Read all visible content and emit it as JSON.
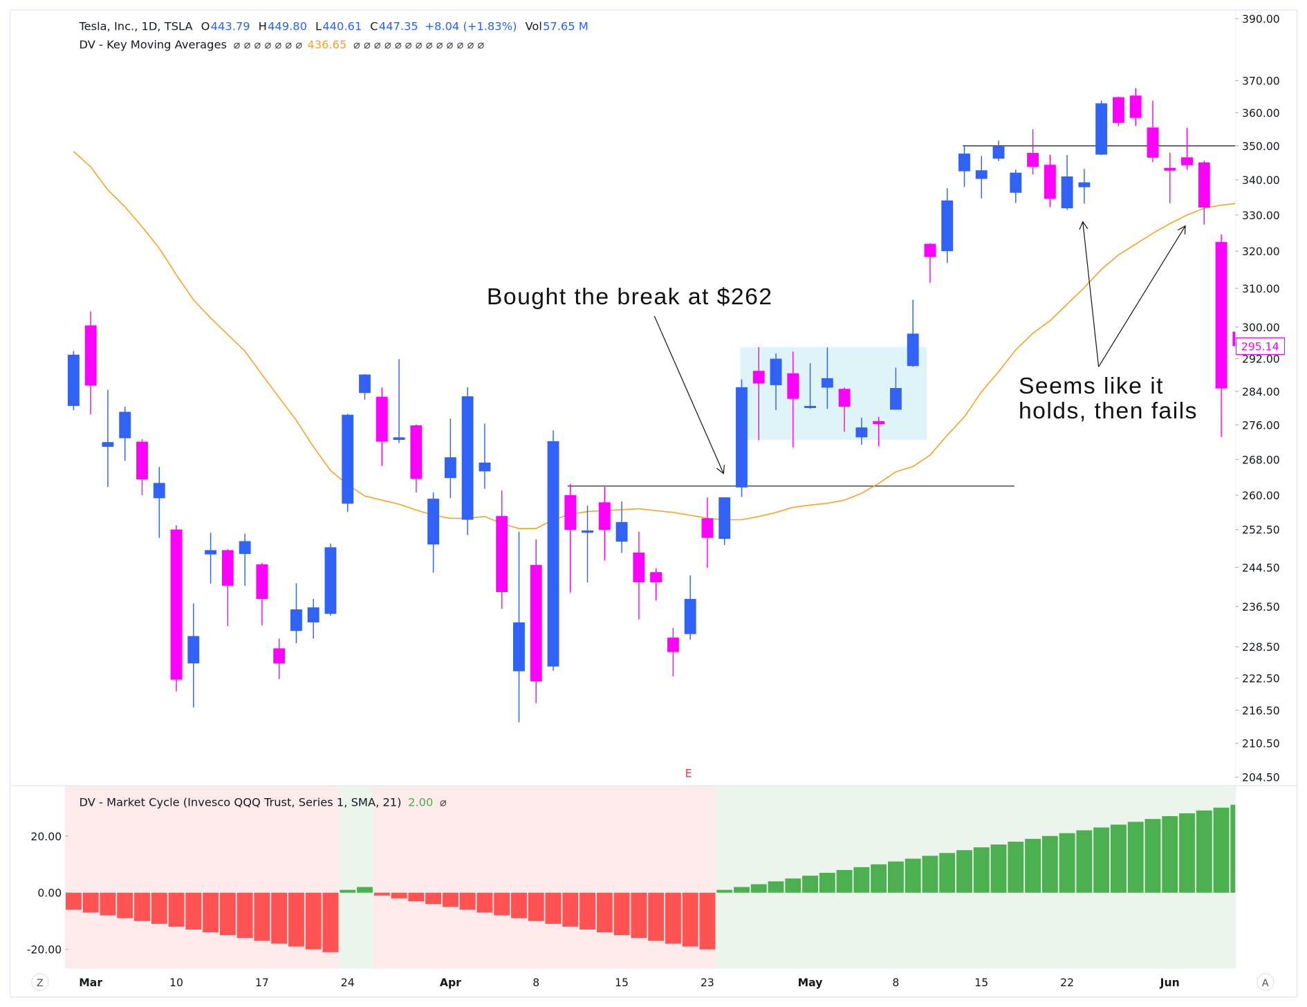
{
  "chart_data": [
    {
      "type": "candlestick",
      "header": {
        "title": "Tesla, Inc., 1D, TSLA",
        "readouts": [
          {
            "label": "O",
            "value": "443.79"
          },
          {
            "label": "H",
            "value": "449.80"
          },
          {
            "label": "L",
            "value": "440.61"
          },
          {
            "label": "C",
            "value": "447.35"
          }
        ],
        "change": "+8.04 (+1.83%)",
        "volume_label": "Vol",
        "volume": "57.65 M"
      },
      "categories": [
        null,
        "Mar",
        null,
        null,
        null,
        null,
        "10",
        null,
        null,
        null,
        null,
        "17",
        null,
        null,
        null,
        null,
        "24",
        null,
        null,
        null,
        null,
        null,
        "Apr",
        null,
        null,
        null,
        null,
        "8",
        null,
        null,
        null,
        null,
        "15",
        null,
        null,
        null,
        null,
        "23",
        null,
        null,
        null,
        null,
        null,
        "May",
        null,
        null,
        null,
        null,
        "8",
        null,
        null,
        null,
        null,
        "15",
        null,
        null,
        null,
        null,
        "22",
        null,
        null,
        null,
        null,
        null,
        "Jun",
        null,
        null,
        null,
        null
      ],
      "open": [
        280.5,
        300.4,
        270.9,
        272.9,
        272.1,
        259.3,
        252.5,
        225.3,
        247.2,
        248.1,
        247.3,
        245.1,
        228.2,
        231.6,
        233.3,
        235.0,
        258.1,
        283.6,
        282.7,
        272.5,
        275.9,
        249.3,
        263.8,
        254.6,
        265.3,
        255.4,
        223.8,
        245.0,
        224.7,
        260.0,
        251.8,
        258.4,
        249.9,
        247.6,
        243.5,
        230.3,
        231.0,
        254.9,
        250.5,
        261.7,
        289.0,
        285.5,
        288.4,
        280.0,
        284.9,
        284.6,
        273.1,
        276.9,
        279.6,
        290.2,
        322.0,
        320.0,
        342.5,
        340.3,
        346.2,
        336.3,
        347.9,
        344.4,
        331.9,
        337.9,
        347.4,
        364.8,
        365.3,
        355.5,
        343.5,
        346.6,
        345.1,
        322.5,
        298.8
      ],
      "high": [
        293.9,
        304.0,
        284.4,
        280.3,
        272.7,
        266.3,
        253.4,
        237.1,
        251.8,
        248.3,
        251.6,
        245.4,
        230.1,
        241.2,
        238.0,
        249.5,
        278.6,
        288.2,
        284.9,
        291.9,
        276.1,
        260.6,
        277.5,
        285.0,
        276.3,
        261.0,
        252.0,
        250.4,
        274.7,
        262.5,
        257.7,
        261.8,
        258.6,
        252.0,
        244.3,
        232.2,
        242.8,
        259.5,
        259.5,
        286.9,
        294.9,
        293.3,
        293.8,
        290.9,
        294.8,
        284.9,
        277.7,
        277.9,
        289.8,
        307.0,
        322.2,
        337.6,
        350.0,
        347.0,
        351.6,
        343.0,
        355.0,
        347.4,
        347.3,
        343.2,
        363.8,
        365.0,
        367.7,
        363.7,
        348.0,
        355.4,
        345.6,
        324.6,
        300.0
      ],
      "low": [
        279.5,
        278.5,
        261.8,
        267.7,
        260.0,
        250.7,
        220.0,
        217.0,
        241.1,
        232.6,
        240.7,
        232.7,
        222.3,
        229.2,
        230.1,
        234.6,
        256.3,
        282.0,
        266.5,
        271.8,
        260.6,
        243.4,
        259.3,
        251.3,
        261.4,
        236.0,
        214.3,
        217.8,
        223.9,
        239.3,
        241.4,
        245.9,
        247.5,
        233.9,
        237.7,
        222.8,
        229.9,
        244.4,
        249.2,
        259.6,
        272.4,
        279.5,
        270.8,
        279.8,
        279.8,
        274.4,
        271.4,
        271.0,
        279.6,
        290.0,
        311.5,
        316.8,
        338.0,
        334.7,
        345.5,
        333.4,
        341.6,
        332.2,
        331.4,
        333.2,
        347.3,
        355.9,
        356.0,
        345.2,
        333.3,
        343.0,
        327.3,
        273.2,
        295.0
      ],
      "close": [
        293.0,
        285.4,
        272.0,
        279.1,
        263.5,
        262.7,
        222.2,
        230.6,
        248.1,
        240.7,
        250.0,
        238.0,
        225.3,
        235.9,
        236.3,
        248.7,
        278.4,
        288.1,
        272.1,
        273.1,
        263.6,
        259.2,
        268.5,
        282.8,
        267.3,
        239.4,
        233.3,
        221.9,
        272.2,
        252.4,
        252.3,
        252.4,
        254.1,
        241.4,
        241.4,
        227.5,
        238.0,
        250.7,
        259.5,
        285.0,
        285.9,
        292.0,
        282.2,
        280.5,
        287.2,
        280.3,
        275.4,
        276.2,
        284.8,
        298.3,
        318.4,
        334.1,
        347.7,
        342.8,
        350.0,
        342.1,
        343.8,
        334.6,
        341.0,
        339.3,
        362.9,
        356.9,
        358.4,
        346.5,
        342.7,
        344.3,
        332.1,
        284.7,
        295.14
      ],
      "up_color": "#2f62f5",
      "down_color": "#ff00ff",
      "log_scale": true,
      "ylim": [
        203.1,
        392.9
      ],
      "yticks": [
        {
          "value": 390,
          "label": "390.00"
        },
        {
          "value": 370,
          "label": "370.00"
        },
        {
          "value": 360,
          "label": "360.00"
        },
        {
          "value": 350,
          "label": "350.00"
        },
        {
          "value": 340,
          "label": "340.00"
        },
        {
          "value": 330,
          "label": "330.00"
        },
        {
          "value": 320,
          "label": "320.00"
        },
        {
          "value": 310,
          "label": "310.00"
        },
        {
          "value": 300,
          "label": "300.00"
        },
        {
          "value": 292,
          "label": "292.00"
        },
        {
          "value": 284,
          "label": "284.00"
        },
        {
          "value": 276,
          "label": "276.00"
        },
        {
          "value": 268,
          "label": "268.00"
        },
        {
          "value": 260,
          "label": "260.00"
        },
        {
          "value": 252.5,
          "label": "252.50"
        },
        {
          "value": 244.5,
          "label": "244.50"
        },
        {
          "value": 236.5,
          "label": "236.50"
        },
        {
          "value": 228.5,
          "label": "228.50"
        },
        {
          "value": 222.5,
          "label": "222.50"
        },
        {
          "value": 216.5,
          "label": "216.50"
        },
        {
          "value": 210.5,
          "label": "210.50"
        },
        {
          "value": 204.5,
          "label": "204.50"
        }
      ],
      "moving_average": {
        "name": "DV - Key Moving Averages",
        "color": "#f7a21b",
        "reading": "436.65",
        "empty_before": "⌀ ⌀ ⌀ ⌀ ⌀ ⌀ ⌀",
        "empty_after": "⌀ ⌀ ⌀ ⌀ ⌀ ⌀ ⌀ ⌀ ⌀ ⌀ ⌀ ⌀ ⌀",
        "values": [
          348.3,
          343.8,
          337.1,
          332.3,
          326.7,
          320.8,
          313.6,
          307.0,
          302.3,
          298.1,
          293.9,
          288.1,
          282.5,
          277.1,
          270.9,
          265.5,
          262.3,
          259.8,
          258.9,
          258.0,
          256.7,
          255.6,
          254.9,
          254.9,
          255.3,
          253.8,
          252.7,
          252.7,
          254.6,
          255.8,
          256.4,
          256.6,
          256.8,
          257.0,
          256.6,
          256.2,
          255.6,
          254.9,
          254.6,
          254.6,
          255.3,
          256.2,
          257.3,
          257.8,
          258.2,
          258.9,
          260.4,
          262.6,
          265.2,
          266.4,
          269.0,
          273.6,
          277.9,
          283.9,
          288.8,
          294.2,
          298.4,
          301.6,
          305.9,
          310.2,
          315.1,
          319.0,
          321.9,
          324.9,
          327.6,
          330.0,
          331.9,
          332.8,
          333.3
        ]
      },
      "hlines": [
        262,
        350
      ],
      "box": [
        272.5,
        294.9
      ],
      "box_color": "#d4f0f7",
      "annotations": [
        "Bought the break at $262",
        "Seems like it",
        "holds, then fails"
      ],
      "earnings_marker": "E"
    },
    {
      "type": "bar",
      "title": "DV - Market Cycle (Invesco QQQ Trust, Series 1, SMA, 21)",
      "reading": "2.00",
      "empty": "⌀",
      "values": [
        -6,
        -7,
        -8,
        -9,
        -10,
        -11,
        -12,
        -13,
        -14,
        -15,
        -16,
        -17,
        -18,
        -19,
        -20,
        -21,
        1,
        2,
        -1,
        -2,
        -3,
        -4,
        -5,
        -6,
        -7,
        -8,
        -9,
        -10,
        -11,
        -12,
        -13,
        -14,
        -15,
        -16,
        -17,
        -18,
        -19,
        -20,
        1,
        2,
        3,
        4,
        5,
        6,
        7,
        8,
        9,
        10,
        11,
        12,
        13,
        14,
        15,
        16,
        17,
        18,
        19,
        20,
        21,
        22,
        23,
        24,
        25,
        26,
        27,
        28,
        29,
        30,
        31
      ],
      "positive_color": "#4caf50",
      "negative_color": "#ff5252",
      "positive_shade": "#ebf5ec",
      "negative_shade": "#fdeaea",
      "ylim": [
        -26.8,
        37.6
      ],
      "yticks": [
        {
          "value": 20,
          "label": "20.00"
        },
        {
          "value": 0,
          "label": "0.00"
        },
        {
          "value": -20,
          "label": "-20.00"
        }
      ]
    }
  ],
  "buttons": [
    "Z",
    "A"
  ]
}
